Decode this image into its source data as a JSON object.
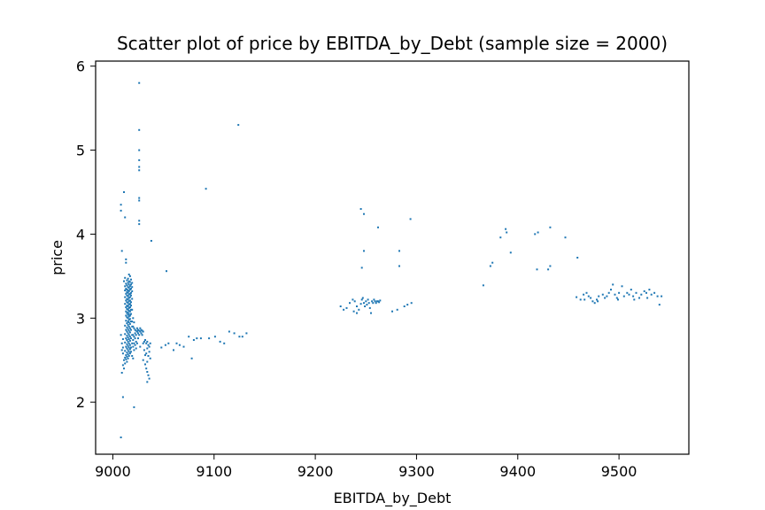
{
  "chart_data": {
    "type": "scatter",
    "title": "Scatter plot of price by EBITDA_by_Debt (sample size = 2000)",
    "xlabel": "EBITDA_by_Debt",
    "ylabel": "price",
    "xlim": [
      8983,
      9569
    ],
    "ylim": [
      1.38,
      6.06
    ],
    "xticks": [
      9000,
      9100,
      9200,
      9300,
      9400,
      9500
    ],
    "yticks": [
      2,
      3,
      4,
      5,
      6
    ],
    "grid": false,
    "legend": "none",
    "marker_color": "#1f77b4",
    "points": [
      [
        9026,
        5.8
      ],
      [
        9124,
        5.3
      ],
      [
        9026,
        5.24
      ],
      [
        9026,
        5.0
      ],
      [
        9026,
        4.88
      ],
      [
        9026,
        4.8
      ],
      [
        9026,
        4.76
      ],
      [
        9092,
        4.54
      ],
      [
        9011,
        4.5
      ],
      [
        9026,
        4.43
      ],
      [
        9026,
        4.4
      ],
      [
        9008,
        4.35
      ],
      [
        9008,
        4.28
      ],
      [
        9012,
        4.2
      ],
      [
        9026,
        4.16
      ],
      [
        9026,
        4.12
      ],
      [
        9038,
        3.92
      ],
      [
        9009,
        3.8
      ],
      [
        9013,
        3.7
      ],
      [
        9013,
        3.66
      ],
      [
        9053,
        3.56
      ],
      [
        9016,
        3.52
      ],
      [
        9017,
        3.5
      ],
      [
        9012,
        3.48
      ],
      [
        9015,
        3.47
      ],
      [
        9018,
        3.46
      ],
      [
        9014,
        3.45
      ],
      [
        9016,
        3.44
      ],
      [
        9011,
        3.44
      ],
      [
        9017,
        3.43
      ],
      [
        9019,
        3.42
      ],
      [
        9015,
        3.42
      ],
      [
        9013,
        3.41
      ],
      [
        9016,
        3.4
      ],
      [
        9018,
        3.4
      ],
      [
        9014,
        3.39
      ],
      [
        9012,
        3.38
      ],
      [
        9017,
        3.38
      ],
      [
        9015,
        3.37
      ],
      [
        9019,
        3.37
      ],
      [
        9016,
        3.36
      ],
      [
        9013,
        3.35
      ],
      [
        9018,
        3.35
      ],
      [
        9014,
        3.34
      ],
      [
        9017,
        3.34
      ],
      [
        9015,
        3.33
      ],
      [
        9012,
        3.33
      ],
      [
        9016,
        3.32
      ],
      [
        9019,
        3.32
      ],
      [
        9014,
        3.31
      ],
      [
        9018,
        3.3
      ],
      [
        9015,
        3.3
      ],
      [
        9013,
        3.29
      ],
      [
        9017,
        3.29
      ],
      [
        9016,
        3.28
      ],
      [
        9014,
        3.27
      ],
      [
        9018,
        3.27
      ],
      [
        9015,
        3.26
      ],
      [
        9012,
        3.25
      ],
      [
        9017,
        3.25
      ],
      [
        9016,
        3.24
      ],
      [
        9014,
        3.23
      ],
      [
        9019,
        3.23
      ],
      [
        9015,
        3.22
      ],
      [
        9013,
        3.21
      ],
      [
        9017,
        3.21
      ],
      [
        9016,
        3.2
      ],
      [
        9014,
        3.19
      ],
      [
        9018,
        3.19
      ],
      [
        9015,
        3.18
      ],
      [
        9012,
        3.17
      ],
      [
        9017,
        3.17
      ],
      [
        9016,
        3.16
      ],
      [
        9014,
        3.15
      ],
      [
        9018,
        3.15
      ],
      [
        9015,
        3.14
      ],
      [
        9013,
        3.13
      ],
      [
        9017,
        3.13
      ],
      [
        9016,
        3.12
      ],
      [
        9014,
        3.11
      ],
      [
        9015,
        3.1
      ],
      [
        9018,
        3.1
      ],
      [
        9016,
        3.09
      ],
      [
        9013,
        3.08
      ],
      [
        9017,
        3.08
      ],
      [
        9015,
        3.07
      ],
      [
        9014,
        3.06
      ],
      [
        9016,
        3.05
      ],
      [
        9018,
        3.05
      ],
      [
        9015,
        3.04
      ],
      [
        9013,
        3.03
      ],
      [
        9017,
        3.03
      ],
      [
        9016,
        3.02
      ],
      [
        9014,
        3.01
      ],
      [
        9015,
        3.0
      ],
      [
        9017,
        2.99
      ],
      [
        9016,
        2.98
      ],
      [
        9013,
        2.97
      ],
      [
        9015,
        2.96
      ],
      [
        9018,
        2.96
      ],
      [
        9016,
        2.95
      ],
      [
        9014,
        2.94
      ],
      [
        9017,
        2.93
      ],
      [
        9015,
        2.92
      ],
      [
        9012,
        2.91
      ],
      [
        9016,
        2.9
      ],
      [
        9019,
        2.9
      ],
      [
        9014,
        2.89
      ],
      [
        9017,
        2.88
      ],
      [
        9015,
        2.87
      ],
      [
        9013,
        2.86
      ],
      [
        9018,
        2.86
      ],
      [
        9016,
        2.85
      ],
      [
        9014,
        2.84
      ],
      [
        9017,
        2.83
      ],
      [
        9015,
        2.82
      ],
      [
        9012,
        2.81
      ],
      [
        9016,
        2.8
      ],
      [
        9019,
        2.8
      ],
      [
        9014,
        2.79
      ],
      [
        9017,
        2.78
      ],
      [
        9015,
        2.77
      ],
      [
        9013,
        2.76
      ],
      [
        9018,
        2.76
      ],
      [
        9016,
        2.75
      ],
      [
        9014,
        2.74
      ],
      [
        9017,
        2.73
      ],
      [
        9015,
        2.72
      ],
      [
        9012,
        2.71
      ],
      [
        9016,
        2.7
      ],
      [
        9019,
        2.7
      ],
      [
        9014,
        2.69
      ],
      [
        9017,
        2.68
      ],
      [
        9015,
        2.67
      ],
      [
        9013,
        2.66
      ],
      [
        9016,
        2.65
      ],
      [
        9018,
        2.65
      ],
      [
        9014,
        2.64
      ],
      [
        9017,
        2.63
      ],
      [
        9015,
        2.62
      ],
      [
        9012,
        2.61
      ],
      [
        9016,
        2.6
      ],
      [
        9014,
        2.59
      ],
      [
        9017,
        2.58
      ],
      [
        9015,
        2.57
      ],
      [
        9013,
        2.56
      ],
      [
        9016,
        2.55
      ],
      [
        9014,
        2.54
      ],
      [
        9012,
        2.53
      ],
      [
        9015,
        2.52
      ],
      [
        9013,
        2.51
      ],
      [
        9011,
        2.5
      ],
      [
        9014,
        2.48
      ],
      [
        9012,
        2.46
      ],
      [
        9010,
        2.44
      ],
      [
        9011,
        2.4
      ],
      [
        9009,
        2.35
      ],
      [
        9020,
        2.9
      ],
      [
        9021,
        2.88
      ],
      [
        9022,
        2.86
      ],
      [
        9023,
        2.85
      ],
      [
        9024,
        2.84
      ],
      [
        9025,
        2.86
      ],
      [
        9026,
        2.85
      ],
      [
        9027,
        2.84
      ],
      [
        9028,
        2.86
      ],
      [
        9029,
        2.85
      ],
      [
        9030,
        2.84
      ],
      [
        9024,
        2.88
      ],
      [
        9027,
        2.88
      ],
      [
        9022,
        2.82
      ],
      [
        9025,
        2.82
      ],
      [
        9028,
        2.82
      ],
      [
        9020,
        2.8
      ],
      [
        9023,
        2.8
      ],
      [
        9021,
        2.78
      ],
      [
        9026,
        2.8
      ],
      [
        9029,
        2.8
      ],
      [
        9022,
        2.76
      ],
      [
        9025,
        2.76
      ],
      [
        9020,
        2.74
      ],
      [
        9023,
        2.72
      ],
      [
        9021,
        2.7
      ],
      [
        9024,
        2.7
      ],
      [
        9022,
        2.68
      ],
      [
        9020,
        2.66
      ],
      [
        9023,
        2.64
      ],
      [
        9021,
        2.62
      ],
      [
        9027,
        2.66
      ],
      [
        9030,
        2.7
      ],
      [
        9031,
        2.72
      ],
      [
        9032,
        2.74
      ],
      [
        9033,
        2.7
      ],
      [
        9034,
        2.72
      ],
      [
        9035,
        2.68
      ],
      [
        9036,
        2.66
      ],
      [
        9037,
        2.7
      ],
      [
        9034,
        2.64
      ],
      [
        9036,
        2.6
      ],
      [
        9033,
        2.58
      ],
      [
        9035,
        2.55
      ],
      [
        9037,
        2.52
      ],
      [
        9034,
        2.48
      ],
      [
        9032,
        2.45
      ],
      [
        9033,
        2.4
      ],
      [
        9034,
        2.36
      ],
      [
        9035,
        2.32
      ],
      [
        9036,
        2.28
      ],
      [
        9034,
        2.24
      ],
      [
        9031,
        2.62
      ],
      [
        9032,
        2.56
      ],
      [
        9030,
        2.5
      ],
      [
        9019,
        3.1
      ],
      [
        9020,
        3.0
      ],
      [
        9021,
        2.95
      ],
      [
        9019,
        2.96
      ],
      [
        9018,
        2.6
      ],
      [
        9019,
        2.55
      ],
      [
        9020,
        2.52
      ],
      [
        9010,
        2.65
      ],
      [
        9009,
        2.7
      ],
      [
        9010,
        2.75
      ],
      [
        9008,
        2.8
      ],
      [
        9009,
        2.62
      ],
      [
        9010,
        2.58
      ],
      [
        9010,
        2.06
      ],
      [
        9021,
        1.94
      ],
      [
        9008,
        1.58
      ],
      [
        9048,
        2.65
      ],
      [
        9052,
        2.68
      ],
      [
        9055,
        2.7
      ],
      [
        9060,
        2.62
      ],
      [
        9063,
        2.7
      ],
      [
        9066,
        2.68
      ],
      [
        9070,
        2.66
      ],
      [
        9075,
        2.78
      ],
      [
        9080,
        2.74
      ],
      [
        9083,
        2.76
      ],
      [
        9087,
        2.76
      ],
      [
        9078,
        2.52
      ],
      [
        9095,
        2.76
      ],
      [
        9101,
        2.78
      ],
      [
        9106,
        2.72
      ],
      [
        9110,
        2.7
      ],
      [
        9115,
        2.84
      ],
      [
        9120,
        2.82
      ],
      [
        9125,
        2.78
      ],
      [
        9128,
        2.78
      ],
      [
        9132,
        2.82
      ],
      [
        9245,
        4.3
      ],
      [
        9248,
        4.24
      ],
      [
        9262,
        4.08
      ],
      [
        9294,
        4.18
      ],
      [
        9248,
        3.8
      ],
      [
        9283,
        3.8
      ],
      [
        9246,
        3.6
      ],
      [
        9283,
        3.62
      ],
      [
        9225,
        3.14
      ],
      [
        9228,
        3.1
      ],
      [
        9231,
        3.12
      ],
      [
        9234,
        3.18
      ],
      [
        9237,
        3.22
      ],
      [
        9239,
        3.2
      ],
      [
        9241,
        3.14
      ],
      [
        9243,
        3.1
      ],
      [
        9245,
        3.17
      ],
      [
        9246,
        3.22
      ],
      [
        9247,
        3.24
      ],
      [
        9248,
        3.18
      ],
      [
        9249,
        3.14
      ],
      [
        9250,
        3.2
      ],
      [
        9251,
        3.16
      ],
      [
        9252,
        3.22
      ],
      [
        9253,
        3.18
      ],
      [
        9254,
        3.12
      ],
      [
        9255,
        3.06
      ],
      [
        9256,
        3.2
      ],
      [
        9257,
        3.18
      ],
      [
        9258,
        3.22
      ],
      [
        9259,
        3.2
      ],
      [
        9260,
        3.18
      ],
      [
        9261,
        3.2
      ],
      [
        9262,
        3.2
      ],
      [
        9263,
        3.19
      ],
      [
        9264,
        3.21
      ],
      [
        9238,
        3.08
      ],
      [
        9241,
        3.06
      ],
      [
        9276,
        3.08
      ],
      [
        9281,
        3.1
      ],
      [
        9288,
        3.14
      ],
      [
        9291,
        3.16
      ],
      [
        9295,
        3.18
      ],
      [
        9366,
        3.39
      ],
      [
        9373,
        3.62
      ],
      [
        9375,
        3.66
      ],
      [
        9383,
        3.96
      ],
      [
        9388,
        4.06
      ],
      [
        9389,
        4.02
      ],
      [
        9393,
        3.78
      ],
      [
        9417,
        4.0
      ],
      [
        9420,
        4.02
      ],
      [
        9419,
        3.58
      ],
      [
        9430,
        3.58
      ],
      [
        9432,
        3.62
      ],
      [
        9432,
        4.08
      ],
      [
        9447,
        3.96
      ],
      [
        9459,
        3.72
      ],
      [
        9458,
        3.25
      ],
      [
        9462,
        3.22
      ],
      [
        9465,
        3.28
      ],
      [
        9468,
        3.3
      ],
      [
        9470,
        3.26
      ],
      [
        9472,
        3.24
      ],
      [
        9474,
        3.2
      ],
      [
        9476,
        3.18
      ],
      [
        9478,
        3.22
      ],
      [
        9480,
        3.26
      ],
      [
        9484,
        3.28
      ],
      [
        9488,
        3.26
      ],
      [
        9490,
        3.3
      ],
      [
        9492,
        3.34
      ],
      [
        9494,
        3.4
      ],
      [
        9496,
        3.28
      ],
      [
        9498,
        3.24
      ],
      [
        9500,
        3.3
      ],
      [
        9503,
        3.38
      ],
      [
        9505,
        3.26
      ],
      [
        9508,
        3.3
      ],
      [
        9510,
        3.28
      ],
      [
        9512,
        3.34
      ],
      [
        9514,
        3.26
      ],
      [
        9517,
        3.3
      ],
      [
        9520,
        3.24
      ],
      [
        9522,
        3.28
      ],
      [
        9525,
        3.32
      ],
      [
        9527,
        3.3
      ],
      [
        9530,
        3.34
      ],
      [
        9532,
        3.28
      ],
      [
        9535,
        3.3
      ],
      [
        9538,
        3.26
      ],
      [
        9540,
        3.16
      ],
      [
        9542,
        3.26
      ],
      [
        9466,
        3.22
      ],
      [
        9479,
        3.2
      ],
      [
        9486,
        3.24
      ],
      [
        9499,
        3.22
      ],
      [
        9515,
        3.22
      ],
      [
        9528,
        3.24
      ]
    ]
  }
}
